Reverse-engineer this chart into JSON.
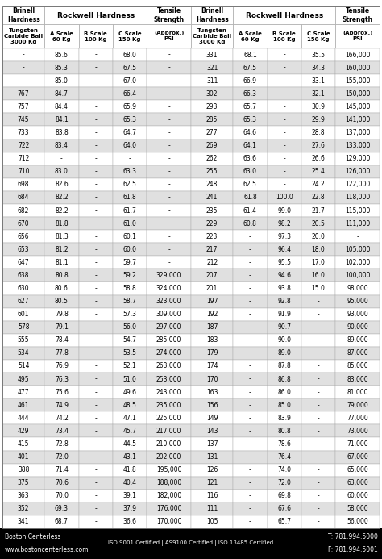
{
  "header_bg": "#ffffff",
  "odd_bg": "#e0e0e0",
  "even_bg": "#ffffff",
  "border_col": "#aaaaaa",
  "footer_bg": "#000000",
  "footer_fg": "#ffffff",
  "subheaders": [
    "Tungsten\nCarbide Ball\n3000 Kg",
    "A Scale\n60 Kg",
    "B Scale\n100 Kg",
    "C Scale\n150 Kg",
    "(Approx.)\nPSI",
    "Tungsten\nCarbide Ball\n3000 Kg",
    "A Scale\n60 Kg",
    "B Scale\n100 Kg",
    "C Scale\n150 Kg",
    "(Approx.)\nPSI"
  ],
  "rows": [
    [
      "-",
      "85.6",
      "-",
      "68.0",
      "-",
      "331",
      "68.1",
      "-",
      "35.5",
      "166,000"
    ],
    [
      "-",
      "85.3",
      "-",
      "67.5",
      "-",
      "321",
      "67.5",
      "-",
      "34.3",
      "160,000"
    ],
    [
      "-",
      "85.0",
      "-",
      "67.0",
      "-",
      "311",
      "66.9",
      "-",
      "33.1",
      "155,000"
    ],
    [
      "767",
      "84.7",
      "-",
      "66.4",
      "-",
      "302",
      "66.3",
      "-",
      "32.1",
      "150,000"
    ],
    [
      "757",
      "84.4",
      "-",
      "65.9",
      "-",
      "293",
      "65.7",
      "-",
      "30.9",
      "145,000"
    ],
    [
      "745",
      "84.1",
      "-",
      "65.3",
      "-",
      "285",
      "65.3",
      "-",
      "29.9",
      "141,000"
    ],
    [
      "733",
      "83.8",
      "-",
      "64.7",
      "-",
      "277",
      "64.6",
      "-",
      "28.8",
      "137,000"
    ],
    [
      "722",
      "83.4",
      "-",
      "64.0",
      "-",
      "269",
      "64.1",
      "-",
      "27.6",
      "133,000"
    ],
    [
      "712",
      "-",
      "-",
      "-",
      "-",
      "262",
      "63.6",
      "-",
      "26.6",
      "129,000"
    ],
    [
      "710",
      "83.0",
      "-",
      "63.3",
      "-",
      "255",
      "63.0",
      "-",
      "25.4",
      "126,000"
    ],
    [
      "698",
      "82.6",
      "-",
      "62.5",
      "-",
      "248",
      "62.5",
      "-",
      "24.2",
      "122,000"
    ],
    [
      "684",
      "82.2",
      "-",
      "61.8",
      "-",
      "241",
      "61.8",
      "100.0",
      "22.8",
      "118,000"
    ],
    [
      "682",
      "82.2",
      "-",
      "61.7",
      "-",
      "235",
      "61.4",
      "99.0",
      "21.7",
      "115,000"
    ],
    [
      "670",
      "81.8",
      "-",
      "61.0",
      "-",
      "229",
      "60.8",
      "98.2",
      "20.5",
      "111,000"
    ],
    [
      "656",
      "81.3",
      "-",
      "60.1",
      "-",
      "223",
      "-",
      "97.3",
      "20.0",
      "-"
    ],
    [
      "653",
      "81.2",
      "-",
      "60.0",
      "-",
      "217",
      "-",
      "96.4",
      "18.0",
      "105,000"
    ],
    [
      "647",
      "81.1",
      "-",
      "59.7",
      "-",
      "212",
      "-",
      "95.5",
      "17.0",
      "102,000"
    ],
    [
      "638",
      "80.8",
      "-",
      "59.2",
      "329,000",
      "207",
      "-",
      "94.6",
      "16.0",
      "100,000"
    ],
    [
      "630",
      "80.6",
      "-",
      "58.8",
      "324,000",
      "201",
      "-",
      "93.8",
      "15.0",
      "98,000"
    ],
    [
      "627",
      "80.5",
      "-",
      "58.7",
      "323,000",
      "197",
      "-",
      "92.8",
      "-",
      "95,000"
    ],
    [
      "601",
      "79.8",
      "-",
      "57.3",
      "309,000",
      "192",
      "-",
      "91.9",
      "-",
      "93,000"
    ],
    [
      "578",
      "79.1",
      "-",
      "56.0",
      "297,000",
      "187",
      "-",
      "90.7",
      "-",
      "90,000"
    ],
    [
      "555",
      "78.4",
      "-",
      "54.7",
      "285,000",
      "183",
      "-",
      "90.0",
      "-",
      "89,000"
    ],
    [
      "534",
      "77.8",
      "-",
      "53.5",
      "274,000",
      "179",
      "-",
      "89.0",
      "-",
      "87,000"
    ],
    [
      "514",
      "76.9",
      "-",
      "52.1",
      "263,000",
      "174",
      "-",
      "87.8",
      "-",
      "85,000"
    ],
    [
      "495",
      "76.3",
      "-",
      "51.0",
      "253,000",
      "170",
      "-",
      "86.8",
      "-",
      "83,000"
    ],
    [
      "477",
      "75.6",
      "-",
      "49.6",
      "243,000",
      "163",
      "-",
      "86.0",
      "-",
      "81,000"
    ],
    [
      "461",
      "74.9",
      "-",
      "48.5",
      "235,000",
      "156",
      "-",
      "85.0",
      "-",
      "79,000"
    ],
    [
      "444",
      "74.2",
      "-",
      "47.1",
      "225,000",
      "149",
      "-",
      "83.9",
      "-",
      "77,000"
    ],
    [
      "429",
      "73.4",
      "-",
      "45.7",
      "217,000",
      "143",
      "-",
      "80.8",
      "-",
      "73,000"
    ],
    [
      "415",
      "72.8",
      "-",
      "44.5",
      "210,000",
      "137",
      "-",
      "78.6",
      "-",
      "71,000"
    ],
    [
      "401",
      "72.0",
      "-",
      "43.1",
      "202,000",
      "131",
      "-",
      "76.4",
      "-",
      "67,000"
    ],
    [
      "388",
      "71.4",
      "-",
      "41.8",
      "195,000",
      "126",
      "-",
      "74.0",
      "-",
      "65,000"
    ],
    [
      "375",
      "70.6",
      "-",
      "40.4",
      "188,000",
      "121",
      "-",
      "72.0",
      "-",
      "63,000"
    ],
    [
      "363",
      "70.0",
      "-",
      "39.1",
      "182,000",
      "116",
      "-",
      "69.8",
      "-",
      "60,000"
    ],
    [
      "352",
      "69.3",
      "-",
      "37.9",
      "176,000",
      "111",
      "-",
      "67.6",
      "-",
      "58,000"
    ],
    [
      "341",
      "68.7",
      "-",
      "36.6",
      "170,000",
      "105",
      "-",
      "65.7",
      "-",
      "56,000"
    ]
  ],
  "footer_left": "Boston Centerless",
  "footer_website": "www.bostoncenterless.com",
  "footer_center": "ISO 9001 Certified | AS9100 Certified | ISO 13485 Certified",
  "footer_right_top": "T: 781.994.5000",
  "footer_right_bottom": "F: 781.994.5001",
  "col_weights": [
    1.05,
    0.85,
    0.85,
    0.85,
    1.1,
    1.05,
    0.85,
    0.85,
    0.85,
    1.1
  ]
}
